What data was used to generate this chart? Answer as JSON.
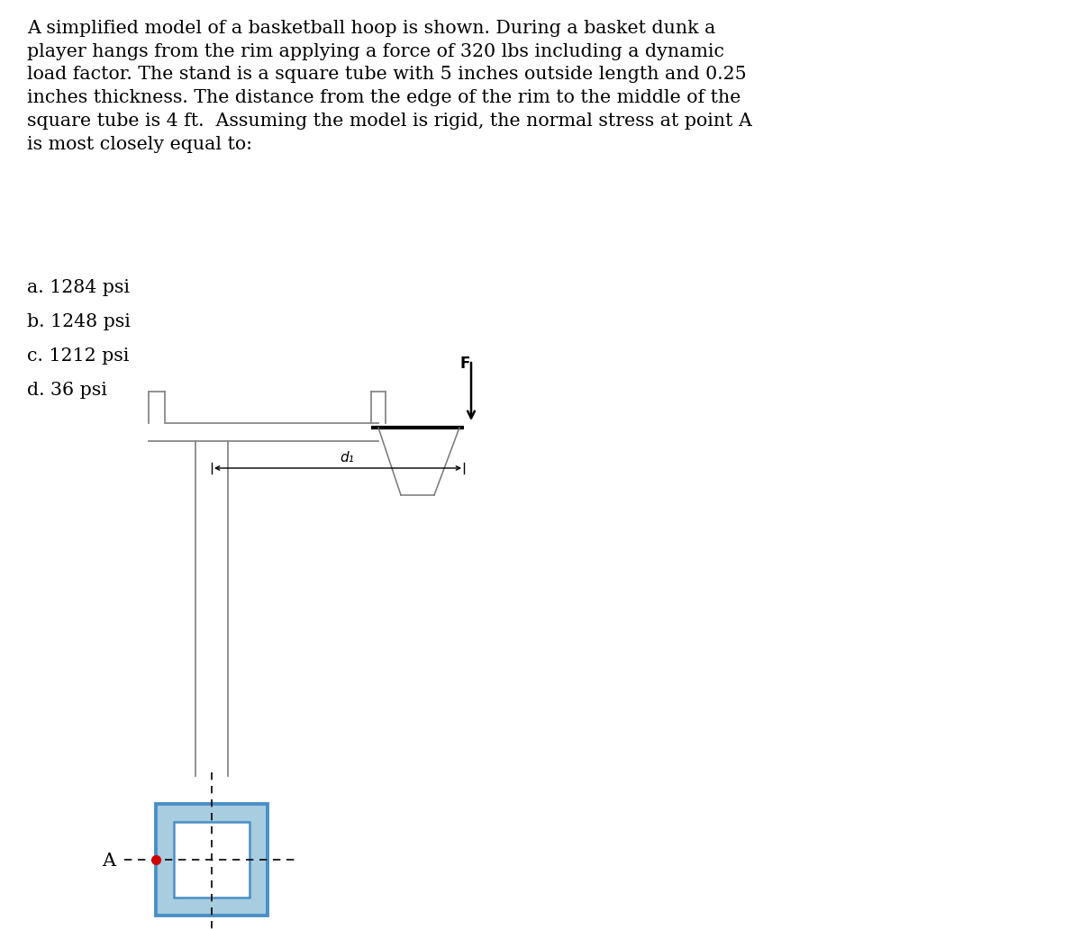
{
  "title_text": "A simplified model of a basketball hoop is shown. During a basket dunk a\nplayer hangs from the rim applying a force of 320 lbs including a dynamic\nload factor. The stand is a square tube with 5 inches outside length and 0.25\ninches thickness. The distance from the edge of the rim to the middle of the\nsquare tube is 4 ft.  Assuming the model is rigid, the normal stress at point A\nis most closely equal to:",
  "choices": [
    "a. 1284 psi",
    "b. 1248 psi",
    "c. 1212 psi",
    "d. 36 psi"
  ],
  "bg_color": "#ffffff",
  "text_color": "#000000",
  "tube_outline_color": "#4a8fc4",
  "tube_fill_color": "#a8cce0",
  "inner_fill_color": "#ffffff",
  "dashed_color": "#000000",
  "point_A_color": "#cc0000",
  "stand_color": "#888888",
  "rim_color": "#000000",
  "force_color": "#000000",
  "dim_color": "#000000",
  "title_fontsize": 14.8,
  "choice_fontsize": 14.8,
  "label_fontsize": 11
}
